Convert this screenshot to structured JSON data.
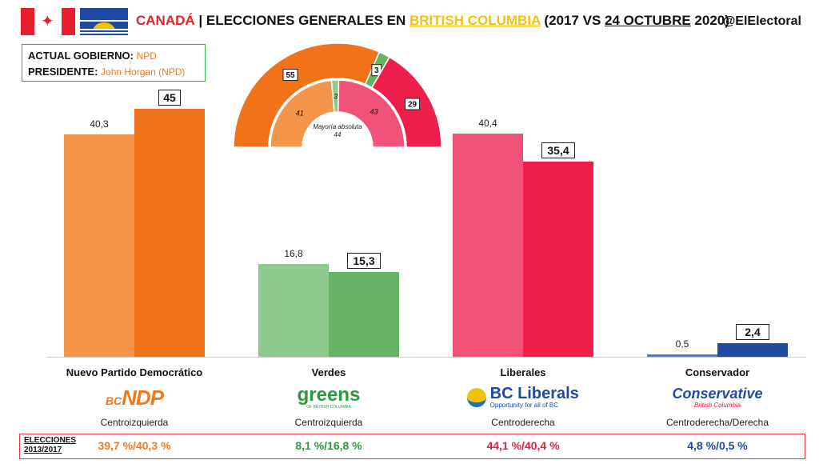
{
  "header": {
    "country": "CANADÁ",
    "separator": " | ",
    "title_pre": "ELECCIONES GENERALES EN ",
    "region": "BRITISH COLUMBIA",
    "title_post_1": " (2017 VS ",
    "date": "24 OCTUBRE",
    "title_post_2": " 2020)",
    "handle": "@ElElectoral"
  },
  "government": {
    "actual_label": "ACTUAL GOBIERNO:",
    "actual_value": "NPD",
    "president_label": "PRESIDENTE:",
    "president_value": "John Horgan (NPD)"
  },
  "colors": {
    "ndp_prev": "#f4954a",
    "ndp_now": "#f07219",
    "green_prev": "#8cc98a",
    "green_now": "#66b366",
    "lib_prev": "#f15278",
    "lib_now": "#ee1f4b",
    "con_prev": "#4a7bd0",
    "con_now": "#1f4aa3"
  },
  "parties": [
    {
      "name": "Nuevo Partido Democrático",
      "ideology": "Centroizquierda",
      "logo_prefix": "BC",
      "logo": "NDP",
      "elections_2013_2017": "39,7 %/40,3 %",
      "color": "#f07a1a"
    },
    {
      "name": "Verdes",
      "ideology": "Centroizquierda",
      "logo": "greens",
      "logo_sub": "OF BRITISH COLUMBIA",
      "elections_2013_2017": "8,1 %/16,8 %",
      "color": "#2a9a3a"
    },
    {
      "name": "Liberales",
      "ideology": "Centroderecha",
      "logo": "BC Liberals",
      "logo_sub": "Opportunity for all of BC",
      "elections_2013_2017": "44,1 %/40,4 %",
      "color": "#e8203f"
    },
    {
      "name": "Conservador",
      "ideology": "Centroderecha/Derecha",
      "logo": "Conservative",
      "logo_sub": "British Columbia",
      "elections_2013_2017": "4,8 %/0,5 %",
      "color": "#1f4aa3"
    }
  ],
  "elections_label_1": "ELECCIONES",
  "elections_label_2": "2013/2017",
  "chart_data": [
    {
      "type": "bar",
      "categories": [
        "Nuevo Partido Democrático",
        "Verdes",
        "Liberales",
        "Conservador"
      ],
      "series": [
        {
          "values": [
            40.3,
            16.8,
            40.4,
            0.5
          ],
          "labels": [
            "40,3",
            "16,8",
            "40,4",
            "0,5"
          ]
        },
        {
          "values": [
            45,
            15.3,
            35.4,
            2.4
          ],
          "labels": [
            "45",
            "15,3",
            "35,4",
            "2,4"
          ]
        }
      ],
      "ylim": [
        0,
        50
      ]
    },
    {
      "type": "pie",
      "subtitle": "Mayoría absoluta",
      "majority": "44",
      "outer": {
        "values": [
          55,
          3,
          29
        ],
        "labels": [
          "55",
          "3",
          "29"
        ]
      },
      "inner": {
        "values": [
          41,
          3,
          43
        ],
        "labels": [
          "41",
          "3",
          "43"
        ]
      }
    }
  ]
}
